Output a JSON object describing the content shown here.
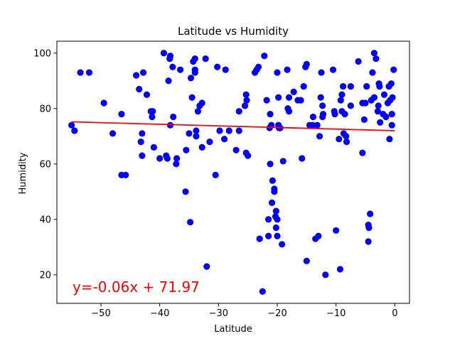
{
  "chart_data": {
    "type": "scatter",
    "title": "Latitude vs Humidity",
    "xlabel": "Latitude",
    "ylabel": "Humidity",
    "xlim": [
      -57.5,
      2.5
    ],
    "ylim": [
      9.7,
      104.3
    ],
    "x_ticks": [
      -50,
      -40,
      -30,
      -20,
      -10,
      0
    ],
    "y_ticks": [
      20,
      40,
      60,
      80,
      100
    ],
    "grid": false,
    "point_color": "#0000ff",
    "regression": {
      "slope": -0.06,
      "intercept": 71.97,
      "color": "#ff0000",
      "x_range": [
        -55.0,
        0.0
      ],
      "line_y": [
        75.2,
        72.0
      ]
    },
    "annotation": {
      "text": "y=-0.06x + 71.97",
      "color": "#ff0000"
    },
    "points": [
      [
        -55,
        74
      ],
      [
        -54.5,
        72
      ],
      [
        -53.5,
        93
      ],
      [
        -52,
        93
      ],
      [
        -49.5,
        82
      ],
      [
        -48,
        71
      ],
      [
        -46.5,
        78
      ],
      [
        -46.5,
        56
      ],
      [
        -45.8,
        56
      ],
      [
        -44,
        92
      ],
      [
        -43.5,
        87
      ],
      [
        -43.2,
        68
      ],
      [
        -43,
        71
      ],
      [
        -43,
        63
      ],
      [
        -42.8,
        93
      ],
      [
        -42.2,
        85
      ],
      [
        -41.5,
        79
      ],
      [
        -41.3,
        77
      ],
      [
        -41.2,
        79
      ],
      [
        -41,
        66
      ],
      [
        -40,
        62
      ],
      [
        -39.3,
        100
      ],
      [
        -38.9,
        63
      ],
      [
        -38.7,
        62
      ],
      [
        -38.5,
        90
      ],
      [
        -38.2,
        99
      ],
      [
        -38.3,
        98
      ],
      [
        -38.2,
        74
      ],
      [
        -37.8,
        95
      ],
      [
        -37.7,
        77
      ],
      [
        -37.2,
        60
      ],
      [
        -37.1,
        62
      ],
      [
        -36.5,
        94
      ],
      [
        -35.6,
        50
      ],
      [
        -35.5,
        65
      ],
      [
        -35,
        71
      ],
      [
        -34.8,
        39
      ],
      [
        -34.7,
        91
      ],
      [
        -34.5,
        84
      ],
      [
        -34.3,
        97
      ],
      [
        -34,
        98
      ],
      [
        -34,
        93
      ],
      [
        -34,
        94
      ],
      [
        -33.8,
        72
      ],
      [
        -33.8,
        70
      ],
      [
        -33.5,
        79
      ],
      [
        -33.2,
        81
      ],
      [
        -32.8,
        82
      ],
      [
        -32.8,
        66
      ],
      [
        -32.2,
        98
      ],
      [
        -32,
        23
      ],
      [
        -31.5,
        68
      ],
      [
        -30.5,
        56
      ],
      [
        -30.2,
        95
      ],
      [
        -29.8,
        72
      ],
      [
        -29,
        69
      ],
      [
        -28.8,
        94
      ],
      [
        -28.2,
        72
      ],
      [
        -27,
        65
      ],
      [
        -26.5,
        72
      ],
      [
        -26.5,
        79
      ],
      [
        -25.5,
        81
      ],
      [
        -25.3,
        85
      ],
      [
        -25.2,
        83
      ],
      [
        -25.3,
        64
      ],
      [
        -25,
        63
      ],
      [
        -23.8,
        93
      ],
      [
        -23.5,
        94
      ],
      [
        -23.2,
        95
      ],
      [
        -23,
        33
      ],
      [
        -22.5,
        14
      ],
      [
        -22.2,
        99
      ],
      [
        -21.8,
        83
      ],
      [
        -21.5,
        34
      ],
      [
        -21.5,
        40
      ],
      [
        -21.3,
        73
      ],
      [
        -21.2,
        60
      ],
      [
        -21.2,
        78
      ],
      [
        -21,
        74
      ],
      [
        -20.9,
        46
      ],
      [
        -20.8,
        54
      ],
      [
        -20.5,
        51
      ],
      [
        -20.5,
        50
      ],
      [
        -20.3,
        41
      ],
      [
        -20.2,
        43
      ],
      [
        -20,
        34
      ],
      [
        -20,
        40
      ],
      [
        -20.2,
        37
      ],
      [
        -20,
        93
      ],
      [
        -19.8,
        84
      ],
      [
        -19.8,
        74
      ],
      [
        -19.7,
        73
      ],
      [
        -19.5,
        73
      ],
      [
        -19.2,
        31
      ],
      [
        -19,
        61
      ],
      [
        -18.3,
        94
      ],
      [
        -18.2,
        80
      ],
      [
        -18,
        84
      ],
      [
        -18,
        79
      ],
      [
        -17.2,
        86
      ],
      [
        -16.5,
        83
      ],
      [
        -16,
        83
      ],
      [
        -15.8,
        62
      ],
      [
        -15.5,
        88
      ],
      [
        -15.2,
        95
      ],
      [
        -15,
        96
      ],
      [
        -15,
        25
      ],
      [
        -14.5,
        74
      ],
      [
        -14,
        74
      ],
      [
        -13.9,
        77
      ],
      [
        -13.5,
        33
      ],
      [
        -13.2,
        74
      ],
      [
        -13,
        34
      ],
      [
        -12.8,
        70
      ],
      [
        -12.6,
        84
      ],
      [
        -12.5,
        93
      ],
      [
        -12.3,
        81
      ],
      [
        -12.2,
        78
      ],
      [
        -12.3,
        77
      ],
      [
        -11.8,
        20
      ],
      [
        -10.5,
        94
      ],
      [
        -10.2,
        78
      ],
      [
        -10.3,
        79
      ],
      [
        -10,
        36
      ],
      [
        -9.5,
        69
      ],
      [
        -9.3,
        22
      ],
      [
        -9.2,
        83
      ],
      [
        -9,
        85
      ],
      [
        -9,
        79
      ],
      [
        -8.8,
        88
      ],
      [
        -8.7,
        71
      ],
      [
        -8.5,
        78
      ],
      [
        -8.3,
        70
      ],
      [
        -8.2,
        68
      ],
      [
        -7.5,
        81
      ],
      [
        -7.5,
        88
      ],
      [
        -6.2,
        97
      ],
      [
        -5.5,
        82
      ],
      [
        -5.5,
        64
      ],
      [
        -5.2,
        76
      ],
      [
        -5,
        82
      ],
      [
        -4.8,
        88
      ],
      [
        -4.5,
        38
      ],
      [
        -4.5,
        32
      ],
      [
        -4.4,
        37
      ],
      [
        -4.2,
        42
      ],
      [
        -4,
        83
      ],
      [
        -3.8,
        93
      ],
      [
        -3.5,
        84
      ],
      [
        -3.5,
        100
      ],
      [
        -3.2,
        98
      ],
      [
        -2.9,
        79
      ],
      [
        -2.8,
        81
      ],
      [
        -2.7,
        89
      ],
      [
        -2.6,
        88
      ],
      [
        -2.5,
        75
      ],
      [
        -2,
        78
      ],
      [
        -1.8,
        85
      ],
      [
        -1.5,
        77
      ],
      [
        -1.2,
        82
      ],
      [
        -1,
        88
      ],
      [
        -0.9,
        69
      ],
      [
        -0.8,
        83
      ],
      [
        -0.6,
        89
      ],
      [
        -0.5,
        78
      ],
      [
        -0.5,
        74
      ],
      [
        -0.4,
        84
      ],
      [
        -0.2,
        94
      ]
    ]
  }
}
